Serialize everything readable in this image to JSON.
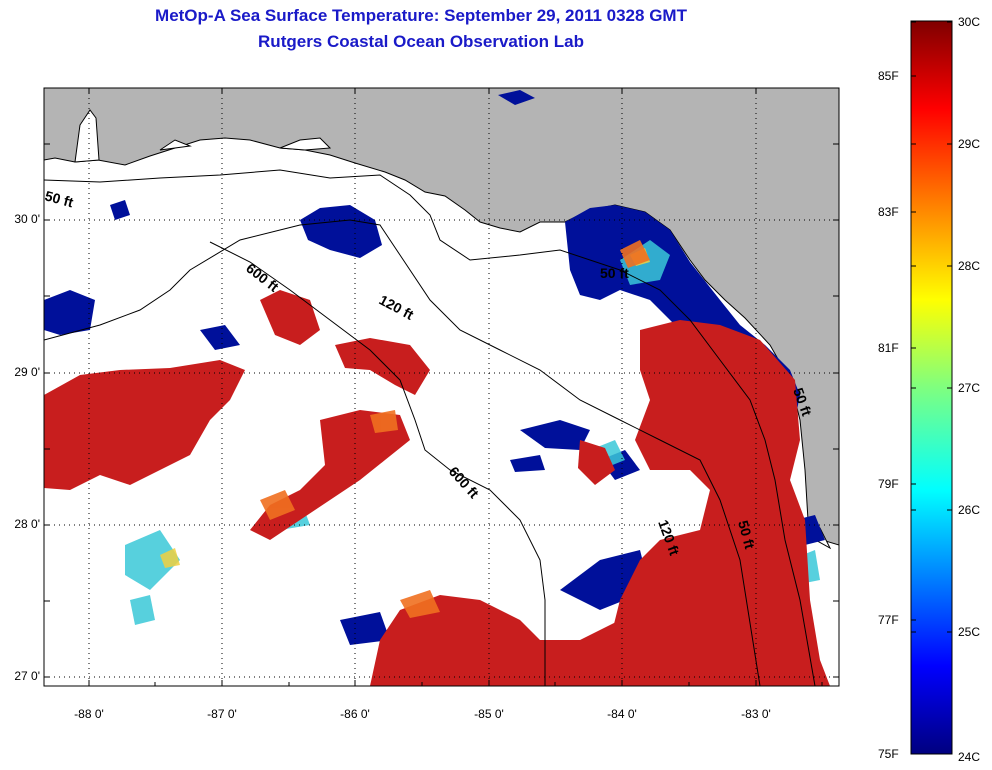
{
  "header": {
    "title": "MetOp-A Sea Surface Temperature:  September 29, 2011 0328 GMT",
    "subtitle": "Rutgers Coastal Ocean Observation Lab"
  },
  "map": {
    "lat_labels": [
      "30 0'",
      "29 0'",
      "28 0'",
      "27 0'"
    ],
    "lon_labels": [
      "-88 0'",
      "-87 0'",
      "-86 0'",
      "-85 0'",
      "-84 0'",
      "-83 0'"
    ],
    "lat_range": [
      26.97,
      30.87
    ],
    "lon_range": [
      -88.32,
      -82.37
    ],
    "contour_labels": [
      "50 ft",
      "600 ft",
      "120 ft",
      "600 ft",
      "50 ft",
      "120 ft",
      "50 ft",
      "50 ft"
    ],
    "colors": {
      "land": "#b4b4b4",
      "no_data": "#ffffff",
      "warm": "#c81e1e",
      "cold": "#00109a"
    }
  },
  "colorbar": {
    "fahrenheit_labels": [
      "85F",
      "83F",
      "81F",
      "79F",
      "77F",
      "75F"
    ],
    "celsius_labels": [
      "30C",
      "29C",
      "28C",
      "27C",
      "26C",
      "25C",
      "24C"
    ],
    "range_c": [
      24,
      30
    ],
    "range_f": [
      75,
      86
    ],
    "colormap": "jet"
  }
}
